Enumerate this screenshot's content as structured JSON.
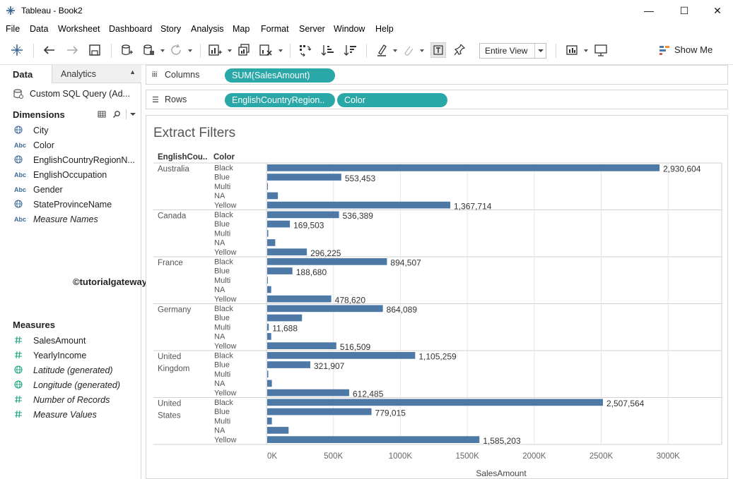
{
  "window": {
    "title": "Tableau - Book2",
    "minimize": "—",
    "maximize": "☐",
    "close": "✕"
  },
  "menu": [
    "File",
    "Data",
    "Worksheet",
    "Dashboard",
    "Story",
    "Analysis",
    "Map",
    "Format",
    "Server",
    "Window",
    "Help"
  ],
  "toolbar": {
    "fit_label": "Entire View",
    "show_me_label": "Show Me",
    "icons": [
      "tableau-logo-icon",
      "undo-icon",
      "redo-icon",
      "save-icon",
      "new-datasource-icon",
      "pause-updates-icon",
      "refresh-icon",
      "new-worksheet-icon",
      "duplicate-sheet-icon",
      "clear-sheet-icon",
      "swap-axes-icon",
      "sort-ascending-icon",
      "sort-descending-icon",
      "highlight-icon",
      "attach-icon",
      "show-labels-icon",
      "pin-icon",
      "show-cards-icon",
      "presentation-mode-icon"
    ]
  },
  "data_pane": {
    "tab_data": "Data",
    "tab_analytics": "Analytics",
    "datasource": "Custom SQL Query (Ad...",
    "dimensions_header": "Dimensions",
    "dimensions": [
      {
        "label": "City",
        "type": "geo",
        "italic": false
      },
      {
        "label": "Color",
        "type": "abc",
        "italic": false
      },
      {
        "label": "EnglishCountryRegionN...",
        "type": "geo",
        "italic": false
      },
      {
        "label": "EnglishOccupation",
        "type": "abc",
        "italic": false
      },
      {
        "label": "Gender",
        "type": "abc",
        "italic": false
      },
      {
        "label": "StateProvinceName",
        "type": "geo",
        "italic": false
      },
      {
        "label": "Measure Names",
        "type": "abc",
        "italic": true
      }
    ],
    "measures_header": "Measures",
    "measures": [
      {
        "label": "SalesAmount",
        "type": "num",
        "italic": false
      },
      {
        "label": "YearlyIncome",
        "type": "num",
        "italic": false
      },
      {
        "label": "Latitude (generated)",
        "type": "geo",
        "italic": true
      },
      {
        "label": "Longitude (generated)",
        "type": "geo",
        "italic": true
      },
      {
        "label": "Number of Records",
        "type": "num",
        "italic": true
      },
      {
        "label": "Measure Values",
        "type": "num",
        "italic": true
      }
    ],
    "watermark": "©tutorialgateway.org",
    "abc_glyph": "Abc"
  },
  "shelves": {
    "columns_label": "Columns",
    "columns_pills": [
      "SUM(SalesAmount)"
    ],
    "rows_label": "Rows",
    "rows_pills": [
      "EnglishCountryRegion..",
      "Color"
    ]
  },
  "colors": {
    "bar": "#4e79a7",
    "pill": "#2aa7a7",
    "grid": "#e6e6e6"
  },
  "chart_data": {
    "type": "bar",
    "orientation": "horizontal",
    "title": "Extract Filters",
    "xlabel": "SalesAmount",
    "row_header_1": "EnglishCou..",
    "row_header_2": "Color",
    "xlim": [
      0,
      3400000
    ],
    "xticks": [
      0,
      500000,
      1000000,
      1500000,
      2000000,
      2500000,
      3000000
    ],
    "xtick_labels": [
      "0K",
      "500K",
      "1000K",
      "1500K",
      "2000K",
      "2500K",
      "3000K"
    ],
    "groups": [
      {
        "name": "Australia",
        "name_lines": [
          "Australia"
        ],
        "rows": [
          {
            "color": "Black",
            "value": 2930604,
            "label": "2,930,604"
          },
          {
            "color": "Blue",
            "value": 553453,
            "label": "553,453"
          },
          {
            "color": "Multi",
            "value": 4000,
            "label": ""
          },
          {
            "color": "NA",
            "value": 80000,
            "label": ""
          },
          {
            "color": "Yellow",
            "value": 1367714,
            "label": "1,367,714"
          }
        ]
      },
      {
        "name": "Canada",
        "name_lines": [
          "Canada"
        ],
        "rows": [
          {
            "color": "Black",
            "value": 536389,
            "label": "536,389"
          },
          {
            "color": "Blue",
            "value": 169503,
            "label": "169,503"
          },
          {
            "color": "Multi",
            "value": 8000,
            "label": ""
          },
          {
            "color": "NA",
            "value": 60000,
            "label": ""
          },
          {
            "color": "Yellow",
            "value": 296225,
            "label": "296,225"
          }
        ]
      },
      {
        "name": "France",
        "name_lines": [
          "France"
        ],
        "rows": [
          {
            "color": "Black",
            "value": 894507,
            "label": "894,507"
          },
          {
            "color": "Blue",
            "value": 188680,
            "label": "188,680"
          },
          {
            "color": "Multi",
            "value": 3000,
            "label": ""
          },
          {
            "color": "NA",
            "value": 30000,
            "label": ""
          },
          {
            "color": "Yellow",
            "value": 478620,
            "label": "478,620"
          }
        ]
      },
      {
        "name": "Germany",
        "name_lines": [
          "Germany"
        ],
        "rows": [
          {
            "color": "Black",
            "value": 864089,
            "label": "864,089"
          },
          {
            "color": "Blue",
            "value": 260000,
            "label": ""
          },
          {
            "color": "Multi",
            "value": 11688,
            "label": "11,688"
          },
          {
            "color": "NA",
            "value": 30000,
            "label": ""
          },
          {
            "color": "Yellow",
            "value": 516509,
            "label": "516,509"
          }
        ]
      },
      {
        "name": "United Kingdom",
        "name_lines": [
          "United",
          "Kingdom"
        ],
        "rows": [
          {
            "color": "Black",
            "value": 1105259,
            "label": "1,105,259"
          },
          {
            "color": "Blue",
            "value": 321907,
            "label": "321,907"
          },
          {
            "color": "Multi",
            "value": 8000,
            "label": ""
          },
          {
            "color": "NA",
            "value": 35000,
            "label": ""
          },
          {
            "color": "Yellow",
            "value": 612485,
            "label": "612,485"
          }
        ]
      },
      {
        "name": "United States",
        "name_lines": [
          "United",
          "States"
        ],
        "rows": [
          {
            "color": "Black",
            "value": 2507564,
            "label": "2,507,564"
          },
          {
            "color": "Blue",
            "value": 779015,
            "label": "779,015"
          },
          {
            "color": "Multi",
            "value": 35000,
            "label": ""
          },
          {
            "color": "NA",
            "value": 160000,
            "label": ""
          },
          {
            "color": "Yellow",
            "value": 1585203,
            "label": "1,585,203"
          }
        ]
      }
    ]
  }
}
